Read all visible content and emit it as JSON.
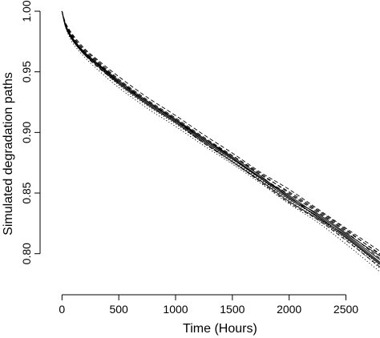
{
  "chart_data": {
    "type": "line",
    "xlabel": "Time (Hours)",
    "ylabel": "Simulated degradation paths",
    "xlim": [
      -80,
      2800
    ],
    "ylim": [
      0.778,
      1.0
    ],
    "xticks": [
      0,
      500,
      1000,
      1500,
      2000,
      2500
    ],
    "yticks": [
      0.8,
      0.85,
      0.9,
      0.95,
      1.0
    ],
    "grid": false,
    "legend": "none",
    "line_color": "#000000",
    "x": [
      0,
      25,
      50,
      100,
      200,
      300,
      500,
      750,
      1000,
      1250,
      1500,
      1750,
      2000,
      2250,
      2500,
      2800
    ],
    "series": [
      {
        "style": "solid",
        "values": [
          1.0,
          0.99,
          0.984,
          0.976,
          0.965,
          0.957,
          0.941,
          0.924,
          0.909,
          0.893,
          0.878,
          0.862,
          0.847,
          0.83,
          0.815,
          0.793
        ]
      },
      {
        "style": "solid",
        "values": [
          1.0,
          0.991,
          0.985,
          0.977,
          0.966,
          0.958,
          0.943,
          0.926,
          0.911,
          0.895,
          0.88,
          0.864,
          0.846,
          0.833,
          0.817,
          0.798
        ]
      },
      {
        "style": "solid",
        "values": [
          1.0,
          0.989,
          0.983,
          0.975,
          0.964,
          0.956,
          0.94,
          0.923,
          0.908,
          0.892,
          0.876,
          0.86,
          0.843,
          0.829,
          0.813,
          0.791
        ]
      },
      {
        "style": "solid",
        "values": [
          1.0,
          0.99,
          0.984,
          0.976,
          0.965,
          0.957,
          0.942,
          0.925,
          0.91,
          0.894,
          0.879,
          0.863,
          0.848,
          0.832,
          0.816,
          0.795
        ]
      },
      {
        "style": "solid",
        "values": [
          1.0,
          0.99,
          0.985,
          0.977,
          0.966,
          0.958,
          0.941,
          0.925,
          0.91,
          0.895,
          0.879,
          0.862,
          0.845,
          0.831,
          0.814,
          0.792
        ]
      },
      {
        "style": "dashed",
        "values": [
          1.0,
          0.992,
          0.987,
          0.98,
          0.969,
          0.961,
          0.946,
          0.929,
          0.914,
          0.898,
          0.883,
          0.867,
          0.853,
          0.837,
          0.821,
          0.802
        ]
      },
      {
        "style": "dashed",
        "values": [
          1.0,
          0.991,
          0.986,
          0.978,
          0.968,
          0.96,
          0.944,
          0.927,
          0.912,
          0.896,
          0.881,
          0.866,
          0.85,
          0.835,
          0.819,
          0.8
        ]
      },
      {
        "style": "dashed",
        "values": [
          1.0,
          0.99,
          0.985,
          0.977,
          0.966,
          0.958,
          0.942,
          0.926,
          0.91,
          0.893,
          0.878,
          0.863,
          0.849,
          0.834,
          0.818,
          0.796
        ]
      },
      {
        "style": "dashed",
        "values": [
          1.0,
          0.989,
          0.983,
          0.975,
          0.964,
          0.955,
          0.94,
          0.923,
          0.908,
          0.891,
          0.876,
          0.859,
          0.842,
          0.828,
          0.811,
          0.789
        ]
      },
      {
        "style": "dashed",
        "values": [
          1.0,
          0.991,
          0.986,
          0.979,
          0.967,
          0.959,
          0.943,
          0.926,
          0.911,
          0.895,
          0.881,
          0.865,
          0.851,
          0.836,
          0.82,
          0.799
        ]
      },
      {
        "style": "dotted",
        "values": [
          1.0,
          0.989,
          0.982,
          0.973,
          0.962,
          0.953,
          0.937,
          0.92,
          0.905,
          0.889,
          0.874,
          0.858,
          0.841,
          0.826,
          0.808,
          0.785
        ]
      },
      {
        "style": "dotted",
        "values": [
          1.0,
          0.99,
          0.984,
          0.976,
          0.965,
          0.956,
          0.939,
          0.922,
          0.907,
          0.891,
          0.875,
          0.86,
          0.844,
          0.828,
          0.812,
          0.788
        ]
      },
      {
        "style": "dotted",
        "values": [
          1.0,
          0.99,
          0.985,
          0.977,
          0.966,
          0.957,
          0.941,
          0.924,
          0.909,
          0.893,
          0.877,
          0.861,
          0.845,
          0.83,
          0.813,
          0.79
        ]
      }
    ]
  }
}
